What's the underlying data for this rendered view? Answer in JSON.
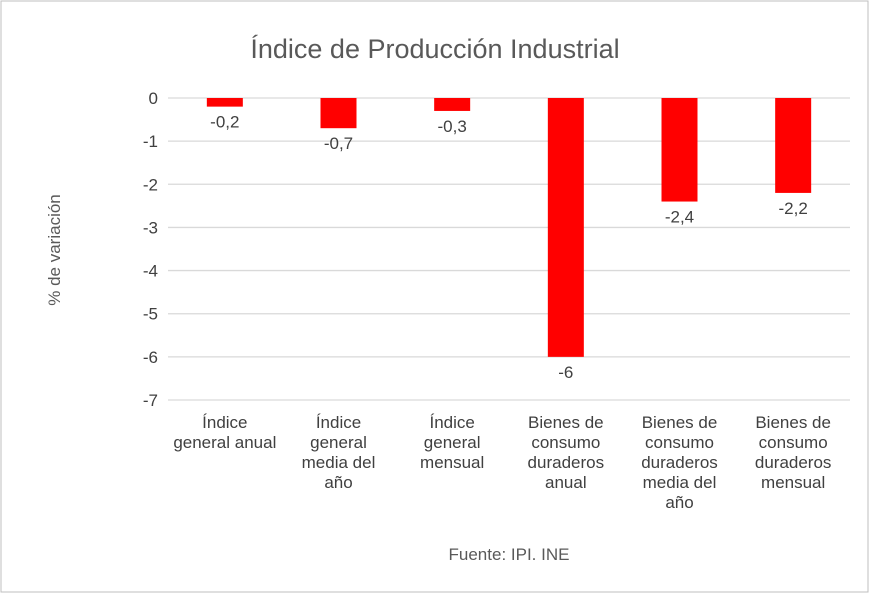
{
  "chart_data": {
    "type": "bar",
    "title": "Índice de Producción Industrial",
    "xlabel": "Fuente: IPI. INE",
    "ylabel": "% de variación",
    "categories": [
      "Índice general anual",
      "Índice general media del año",
      "Índice general mensual",
      "Bienes de consumo duraderos anual",
      "Bienes de consumo duraderos media del año",
      "Bienes de consumo duraderos mensual"
    ],
    "values": [
      -0.2,
      -0.7,
      -0.3,
      -6,
      -2.4,
      -2.2
    ],
    "data_labels": [
      "-0,2",
      "-0,7",
      "-0,3",
      "-6",
      "-2,4",
      "-2,2"
    ],
    "ylim": [
      -7,
      0
    ],
    "yticks": [
      0,
      -1,
      -2,
      -3,
      -4,
      -5,
      -6,
      -7
    ],
    "grid": true,
    "legend": "none",
    "colors": {
      "bar": "#ff0000",
      "grid": "#d9d9d9",
      "border": "#bfbfbf"
    }
  }
}
